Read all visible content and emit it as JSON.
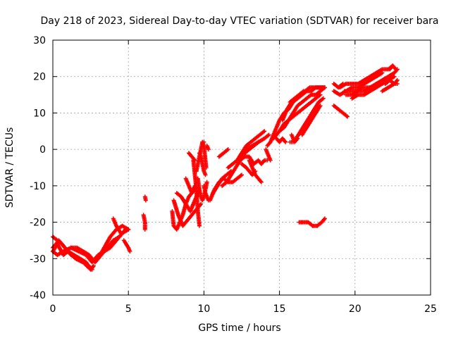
{
  "chart_data": {
    "type": "scatter",
    "title": "Day 218 of 2023, Sidereal Day-to-day VTEC variation (SDTVAR) for receiver bara",
    "xlabel": "GPS time / hours",
    "ylabel": "SDTVAR / TECUs",
    "xlim": [
      0,
      25
    ],
    "ylim": [
      -40,
      30
    ],
    "x_ticks": [
      0,
      5,
      10,
      15,
      20,
      25
    ],
    "y_ticks": [
      -40,
      -30,
      -20,
      -10,
      0,
      10,
      20,
      30
    ],
    "x_tick_labels": [
      "0",
      "5",
      "10",
      "15",
      "20",
      "25"
    ],
    "y_tick_labels": [
      "-40",
      "-30",
      "-20",
      "-10",
      "0",
      "10",
      "20",
      "30"
    ],
    "grid": true,
    "marker": "plus",
    "color": "#ff0000",
    "tracks": [
      {
        "x": [
          0.0,
          0.3,
          0.6,
          1.0,
          1.4,
          1.8,
          2.2,
          2.5,
          2.7
        ],
        "y": [
          -24,
          -25,
          -26,
          -28,
          -29,
          -30,
          -31,
          -33,
          -32
        ]
      },
      {
        "x": [
          0.0,
          0.4,
          0.8,
          1.2,
          1.6,
          2.0,
          2.4,
          2.6
        ],
        "y": [
          -27,
          -25,
          -27,
          -29,
          -30,
          -31,
          -32,
          -33
        ]
      },
      {
        "x": [
          0.0,
          0.3,
          0.7,
          1.0,
          1.5,
          2.0,
          2.5
        ],
        "y": [
          -28,
          -26,
          -29,
          -28,
          -30,
          -31,
          -33
        ]
      },
      {
        "x": [
          0.0,
          0.3,
          0.7,
          1.2,
          1.7,
          2.2,
          2.6,
          3.0,
          3.4,
          3.8,
          4.2,
          4.6,
          5.0
        ],
        "y": [
          -28,
          -29,
          -28,
          -27,
          -28,
          -29,
          -31,
          -29,
          -28,
          -27,
          -25,
          -23,
          -22
        ]
      },
      {
        "x": [
          1.2,
          1.6,
          2.0,
          2.4,
          2.8,
          3.2,
          3.6,
          4.0,
          4.4,
          4.8
        ],
        "y": [
          -27,
          -27,
          -28,
          -29,
          -31,
          -29,
          -27,
          -25,
          -24,
          -22
        ]
      },
      {
        "x": [
          3.0,
          3.4,
          3.8,
          4.2,
          4.6,
          5.0
        ],
        "y": [
          -30,
          -27,
          -24,
          -22,
          -21,
          -22
        ]
      },
      {
        "x": [
          4.0,
          4.2,
          4.5
        ],
        "y": [
          -19,
          -21,
          -23
        ]
      },
      {
        "x": [
          4.7,
          4.85,
          5.0,
          5.1
        ],
        "y": [
          -25,
          -26,
          -27,
          -28
        ]
      },
      {
        "x": [
          6.1,
          6.15
        ],
        "y": [
          -13,
          -14
        ]
      },
      {
        "x": [
          6.0,
          6.1,
          6.1
        ],
        "y": [
          -18,
          -20,
          -22
        ]
      },
      {
        "x": [
          7.9,
          8.0,
          8.2,
          8.4,
          8.6,
          8.8,
          9.0,
          9.2,
          9.4
        ],
        "y": [
          -17,
          -21,
          -22,
          -20,
          -18,
          -15,
          -13,
          -12,
          -11
        ]
      },
      {
        "x": [
          8.0,
          8.3,
          8.6,
          9.0,
          9.4,
          9.8
        ],
        "y": [
          -14,
          -18,
          -21,
          -19,
          -17,
          -15
        ]
      },
      {
        "x": [
          8.2,
          8.5,
          8.8,
          9.1,
          9.4,
          9.7
        ],
        "y": [
          -12,
          -13,
          -15,
          -17,
          -14,
          -11
        ]
      },
      {
        "x": [
          8.8,
          9.0,
          9.2,
          9.4
        ],
        "y": [
          -8,
          -10,
          -12,
          -10
        ]
      },
      {
        "x": [
          9.3,
          9.35,
          9.4,
          9.45,
          9.5,
          9.55,
          9.6,
          9.65,
          9.7
        ],
        "y": [
          -3,
          -5,
          -7,
          -9,
          -11,
          -14,
          -17,
          -19,
          -21
        ]
      },
      {
        "x": [
          9.5,
          9.6,
          9.7,
          9.8,
          9.9,
          10.0
        ],
        "y": [
          -6,
          -4,
          -2,
          0,
          2,
          2
        ]
      },
      {
        "x": [
          9.6,
          9.7,
          9.8,
          9.9,
          10.0,
          10.1,
          10.2
        ],
        "y": [
          -8,
          -11,
          -13,
          -14,
          -13,
          -11,
          -9
        ]
      },
      {
        "x": [
          9.0,
          9.2,
          9.4
        ],
        "y": [
          -1,
          -2,
          -3
        ]
      },
      {
        "x": [
          9.7,
          9.8,
          9.9,
          10.0,
          10.1
        ],
        "y": [
          -1,
          -2,
          -4,
          -6,
          -7
        ]
      },
      {
        "x": [
          10.2,
          10.3
        ],
        "y": [
          1,
          0
        ]
      },
      {
        "x": [
          9.9,
          10.0,
          10.05,
          10.1,
          10.15
        ],
        "y": [
          2,
          1,
          -1,
          -3,
          -5
        ]
      },
      {
        "x": [
          10.0,
          10.05,
          10.1,
          10.2,
          10.3
        ],
        "y": [
          -10,
          -11,
          -12,
          -13,
          -14
        ]
      },
      {
        "x": [
          10.4,
          10.7,
          11.0,
          11.3,
          11.6,
          11.9,
          12.2,
          12.5
        ],
        "y": [
          -14,
          -11,
          -9,
          -8,
          -9,
          -9,
          -8,
          -7
        ]
      },
      {
        "x": [
          10.6,
          10.9,
          11.2,
          11.5,
          11.8
        ],
        "y": [
          -12,
          -10,
          -8,
          -7,
          -6
        ]
      },
      {
        "x": [
          11.2,
          11.5,
          11.8,
          12.1,
          12.4,
          12.7,
          13.0,
          13.3,
          13.6,
          14.0,
          14.3
        ],
        "y": [
          -10,
          -9,
          -7,
          -5,
          -3,
          -1,
          0,
          1,
          2,
          3,
          4
        ]
      },
      {
        "x": [
          11.0,
          11.3,
          11.6
        ],
        "y": [
          -2,
          -1,
          0
        ]
      },
      {
        "x": [
          11.6,
          11.9,
          12.2,
          12.5,
          12.8,
          13.1,
          13.4,
          13.7,
          14.0
        ],
        "y": [
          -5,
          -4,
          -3,
          -1,
          1,
          2,
          3,
          4,
          5
        ]
      },
      {
        "x": [
          12.4,
          12.7,
          13.0,
          13.3,
          13.6,
          13.8,
          14.0,
          14.2
        ],
        "y": [
          -3,
          -2,
          -2,
          -4,
          -3,
          -4,
          -3,
          -3
        ]
      },
      {
        "x": [
          12.5,
          12.8,
          13.0,
          13.2,
          13.4
        ],
        "y": [
          -4,
          -5,
          -6,
          -7,
          -6
        ]
      },
      {
        "x": [
          12.4,
          12.8,
          13.2,
          13.6
        ],
        "y": [
          -2,
          0,
          1,
          2
        ]
      },
      {
        "x": [
          13.0,
          13.2,
          13.4,
          13.6,
          13.8
        ],
        "y": [
          -3,
          -5,
          -7,
          -8,
          -9
        ]
      },
      {
        "x": [
          14.2,
          14.4,
          14.6,
          14.8,
          15.0,
          15.3,
          15.6,
          15.9,
          16.2,
          16.5,
          16.8,
          17.1,
          17.4,
          17.7,
          18.0
        ],
        "y": [
          1,
          2,
          4,
          6,
          8,
          10,
          11,
          13,
          14,
          15,
          16,
          16,
          17,
          17,
          17
        ]
      },
      {
        "x": [
          14.6,
          14.8,
          15.0,
          15.3,
          15.6,
          15.9,
          16.2,
          16.5,
          16.8,
          17.1,
          17.4,
          17.7,
          18.0
        ],
        "y": [
          3,
          4,
          5,
          7,
          8,
          10,
          12,
          13,
          14,
          15,
          15,
          16,
          17
        ]
      },
      {
        "x": [
          15.0,
          15.3,
          15.6,
          15.9,
          16.2,
          16.5,
          16.8,
          17.1,
          17.4,
          17.7
        ],
        "y": [
          5,
          6,
          8,
          9,
          10,
          11,
          12,
          13,
          14,
          15
        ]
      },
      {
        "x": [
          15.2,
          15.5,
          15.8,
          16.1,
          16.4,
          16.7,
          17.0,
          17.3,
          17.6,
          17.9
        ],
        "y": [
          8,
          11,
          13,
          14,
          15,
          16,
          17,
          17,
          17,
          17
        ]
      },
      {
        "x": [
          14.8,
          15.0,
          15.2,
          15.4
        ],
        "y": [
          3,
          2,
          3,
          2
        ]
      },
      {
        "x": [
          14.1,
          14.2,
          14.3,
          14.4
        ],
        "y": [
          0,
          -1,
          -2,
          -3
        ]
      },
      {
        "x": [
          15.8,
          16.0,
          16.2
        ],
        "y": [
          4,
          2,
          3
        ]
      },
      {
        "x": [
          16.1,
          16.4,
          16.7,
          17.0,
          17.3,
          17.6,
          17.9
        ],
        "y": [
          3,
          5,
          7,
          9,
          11,
          13,
          14
        ]
      },
      {
        "x": [
          16.5,
          16.8,
          17.1,
          17.4,
          17.7
        ],
        "y": [
          4,
          6,
          8,
          10,
          12
        ]
      },
      {
        "x": [
          15.7,
          16.0,
          16.3,
          16.6
        ],
        "y": [
          13,
          14,
          15,
          16
        ]
      },
      {
        "x": [
          15.7,
          15.9
        ],
        "y": [
          2,
          2
        ]
      },
      {
        "x": [
          16.3,
          16.6,
          16.9,
          17.2,
          17.5,
          17.8,
          18.0
        ],
        "y": [
          -20,
          -20,
          -20,
          -21,
          -21,
          -20,
          -19
        ]
      },
      {
        "x": [
          18.6,
          18.9,
          19.2
        ],
        "y": [
          18,
          17,
          18
        ]
      },
      {
        "x": [
          18.6,
          18.9,
          19.2,
          19.5
        ],
        "y": [
          12,
          11,
          10,
          9
        ]
      },
      {
        "x": [
          18.6,
          19.0,
          19.4,
          19.8,
          20.2,
          20.6,
          21.0,
          21.4,
          21.8
        ],
        "y": [
          16,
          15,
          16,
          17,
          17,
          18,
          19,
          20,
          21
        ]
      },
      {
        "x": [
          19.0,
          19.4,
          19.8,
          20.2,
          20.6,
          21.0,
          21.4,
          21.8,
          22.2,
          22.5
        ],
        "y": [
          17,
          18,
          18,
          18,
          19,
          20,
          21,
          22,
          22,
          23
        ]
      },
      {
        "x": [
          19.3,
          19.7,
          20.1,
          20.5,
          20.9,
          21.3
        ],
        "y": [
          16,
          16,
          16,
          17,
          17,
          17
        ]
      },
      {
        "x": [
          19.4,
          19.8,
          20.2,
          20.6,
          21.0,
          21.4,
          21.8,
          22.2,
          22.6,
          22.8
        ],
        "y": [
          15,
          15,
          16,
          16,
          17,
          18,
          19,
          20,
          21,
          22
        ]
      },
      {
        "x": [
          19.8,
          20.2,
          20.6,
          21.0,
          21.4,
          21.8,
          22.2,
          22.6
        ],
        "y": [
          14,
          15,
          15,
          16,
          17,
          18,
          19,
          20
        ]
      },
      {
        "x": [
          21.8,
          22.2,
          22.6,
          22.8
        ],
        "y": [
          16,
          17,
          18,
          18
        ]
      },
      {
        "x": [
          22.0,
          22.3,
          22.6,
          22.8
        ],
        "y": [
          18,
          19,
          18,
          19
        ]
      },
      {
        "x": [
          22.3,
          22.5,
          22.7
        ],
        "y": [
          22,
          23,
          22
        ]
      }
    ]
  }
}
